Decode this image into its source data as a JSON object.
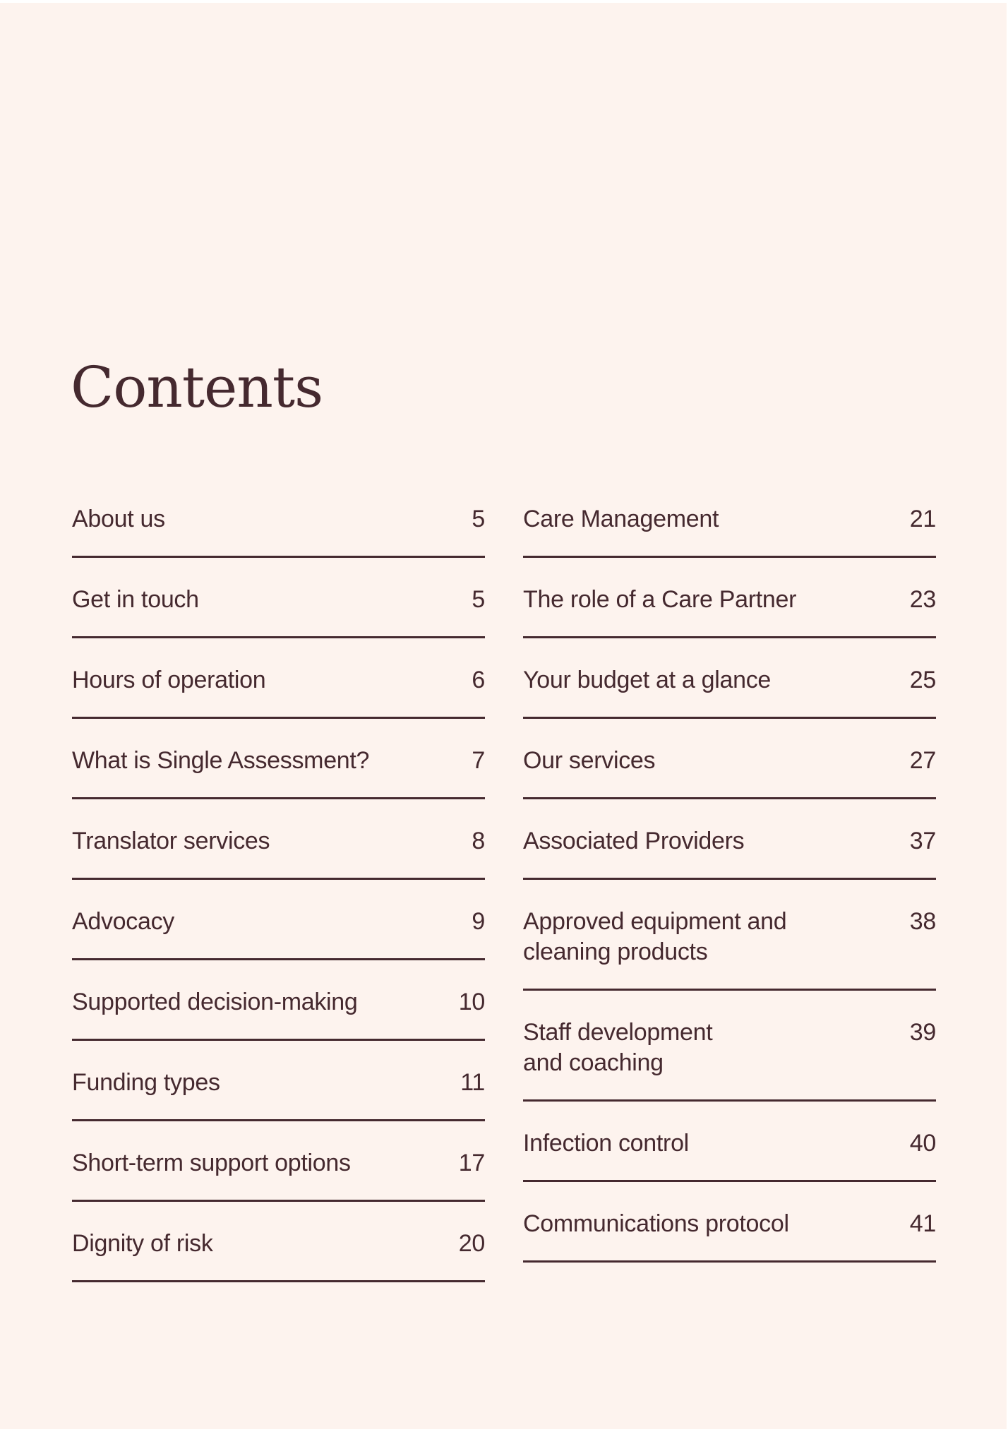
{
  "title": "Contents",
  "colors": {
    "background": "#fdf3ee",
    "text": "#45292f"
  },
  "left_column": [
    {
      "label": "About us",
      "page": "5"
    },
    {
      "label": "Get in touch",
      "page": "5"
    },
    {
      "label": "Hours of operation",
      "page": "6"
    },
    {
      "label": "What is Single Assessment?",
      "page": "7"
    },
    {
      "label": "Translator services",
      "page": "8"
    },
    {
      "label": "Advocacy",
      "page": "9"
    },
    {
      "label": "Supported decision-making",
      "page": "10"
    },
    {
      "label": "Funding types",
      "page": "11"
    },
    {
      "label": "Short-term support options",
      "page": "17"
    },
    {
      "label": "Dignity of risk",
      "page": "20"
    }
  ],
  "right_column": [
    {
      "label": "Care Management",
      "page": "21"
    },
    {
      "label": "The role of a Care Partner",
      "page": "23"
    },
    {
      "label": "Your budget at a glance",
      "page": "25"
    },
    {
      "label": "Our services",
      "page": "27"
    },
    {
      "label": "Associated Providers",
      "page": "37"
    },
    {
      "label": "Approved equipment and cleaning products",
      "page": "38"
    },
    {
      "label": "Staff development and coaching",
      "page": "39"
    },
    {
      "label": "Infection control",
      "page": "40"
    },
    {
      "label": "Communications protocol",
      "page": "41"
    }
  ]
}
